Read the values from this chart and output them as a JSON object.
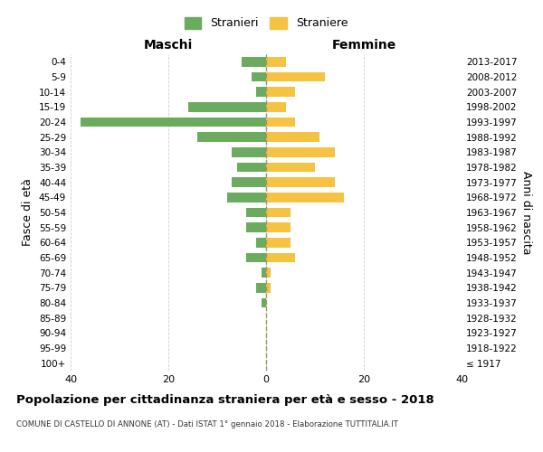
{
  "age_groups": [
    "100+",
    "95-99",
    "90-94",
    "85-89",
    "80-84",
    "75-79",
    "70-74",
    "65-69",
    "60-64",
    "55-59",
    "50-54",
    "45-49",
    "40-44",
    "35-39",
    "30-34",
    "25-29",
    "20-24",
    "15-19",
    "10-14",
    "5-9",
    "0-4"
  ],
  "birth_years": [
    "≤ 1917",
    "1918-1922",
    "1923-1927",
    "1928-1932",
    "1933-1937",
    "1938-1942",
    "1943-1947",
    "1948-1952",
    "1953-1957",
    "1958-1962",
    "1963-1967",
    "1968-1972",
    "1973-1977",
    "1978-1982",
    "1983-1987",
    "1988-1992",
    "1993-1997",
    "1998-2002",
    "2003-2007",
    "2008-2012",
    "2013-2017"
  ],
  "males": [
    0,
    0,
    0,
    0,
    1,
    2,
    1,
    4,
    2,
    4,
    4,
    8,
    7,
    6,
    7,
    14,
    38,
    16,
    2,
    3,
    5
  ],
  "females": [
    0,
    0,
    0,
    0,
    0,
    1,
    1,
    6,
    5,
    5,
    5,
    16,
    14,
    10,
    14,
    11,
    6,
    4,
    6,
    12,
    4
  ],
  "male_color": "#6aab5e",
  "female_color": "#f5c242",
  "background_color": "#ffffff",
  "grid_color": "#cccccc",
  "title": "Popolazione per cittadinanza straniera per età e sesso - 2018",
  "subtitle": "COMUNE DI CASTELLO DI ANNONE (AT) - Dati ISTAT 1° gennaio 2018 - Elaborazione TUTTITALIA.IT",
  "xlabel_left": "Maschi",
  "xlabel_right": "Femmine",
  "ylabel_left": "Fasce di età",
  "ylabel_right": "Anni di nascita",
  "legend_males": "Stranieri",
  "legend_females": "Straniere",
  "xlim": 40
}
